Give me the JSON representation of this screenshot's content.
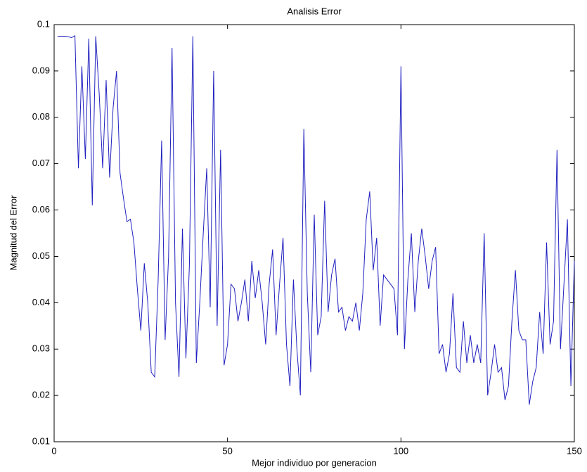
{
  "chart_data": {
    "type": "line",
    "title": "Analisis Error",
    "x_label": "Mejor individuo por generacion",
    "y_label": "Magnitud del Error",
    "x": [
      1,
      2,
      3,
      4,
      5,
      6,
      7,
      8,
      9,
      10,
      11,
      12,
      13,
      14,
      15,
      16,
      17,
      18,
      19,
      20,
      21,
      22,
      23,
      24,
      25,
      26,
      27,
      28,
      29,
      30,
      31,
      32,
      33,
      34,
      35,
      36,
      37,
      38,
      39,
      40,
      41,
      42,
      43,
      44,
      45,
      46,
      47,
      48,
      49,
      50,
      51,
      52,
      53,
      54,
      55,
      56,
      57,
      58,
      59,
      60,
      61,
      62,
      63,
      64,
      65,
      66,
      67,
      68,
      69,
      70,
      71,
      72,
      73,
      74,
      75,
      76,
      77,
      78,
      79,
      80,
      81,
      82,
      83,
      84,
      85,
      86,
      87,
      88,
      89,
      90,
      91,
      92,
      93,
      94,
      95,
      96,
      97,
      98,
      99,
      100,
      101,
      102,
      103,
      104,
      105,
      106,
      107,
      108,
      109,
      110,
      111,
      112,
      113,
      114,
      115,
      116,
      117,
      118,
      119,
      120,
      121,
      122,
      123,
      124,
      125,
      126,
      127,
      128,
      129,
      130,
      131,
      132,
      133,
      134,
      135,
      136,
      137,
      138,
      139,
      140,
      141,
      142,
      143,
      144,
      145,
      146,
      147,
      148,
      149,
      150
    ],
    "series": [
      {
        "name": "Error",
        "color": "#2020c0",
        "values": [
          0.0975,
          0.0975,
          0.0975,
          0.0974,
          0.0972,
          0.0976,
          0.069,
          0.091,
          0.071,
          0.097,
          0.061,
          0.0975,
          0.085,
          0.069,
          0.088,
          0.067,
          0.082,
          0.09,
          0.068,
          0.0625,
          0.0575,
          0.058,
          0.053,
          0.043,
          0.034,
          0.0485,
          0.04,
          0.025,
          0.024,
          0.045,
          0.075,
          0.032,
          0.05,
          0.095,
          0.04,
          0.024,
          0.056,
          0.028,
          0.048,
          0.0975,
          0.027,
          0.04,
          0.055,
          0.069,
          0.039,
          0.09,
          0.035,
          0.073,
          0.0265,
          0.031,
          0.044,
          0.043,
          0.036,
          0.04,
          0.045,
          0.036,
          0.049,
          0.041,
          0.047,
          0.04,
          0.031,
          0.044,
          0.0515,
          0.033,
          0.044,
          0.054,
          0.031,
          0.022,
          0.045,
          0.03,
          0.02,
          0.0775,
          0.042,
          0.025,
          0.059,
          0.033,
          0.037,
          0.062,
          0.038,
          0.046,
          0.0495,
          0.038,
          0.039,
          0.034,
          0.037,
          0.036,
          0.04,
          0.034,
          0.042,
          0.058,
          0.064,
          0.047,
          0.054,
          0.035,
          0.046,
          0.045,
          0.044,
          0.043,
          0.033,
          0.091,
          0.03,
          0.045,
          0.055,
          0.038,
          0.049,
          0.056,
          0.05,
          0.043,
          0.049,
          0.052,
          0.029,
          0.031,
          0.025,
          0.029,
          0.042,
          0.026,
          0.025,
          0.036,
          0.027,
          0.033,
          0.027,
          0.031,
          0.027,
          0.055,
          0.02,
          0.025,
          0.031,
          0.025,
          0.026,
          0.019,
          0.022,
          0.036,
          0.047,
          0.034,
          0.032,
          0.032,
          0.018,
          0.023,
          0.026,
          0.038,
          0.029,
          0.053,
          0.031,
          0.036,
          0.073,
          0.03,
          0.044,
          0.058,
          0.022,
          0.049
        ]
      }
    ],
    "xlim": [
      0,
      150
    ],
    "xticks": [
      0,
      50,
      100,
      150
    ],
    "ylim": [
      0.01,
      0.1
    ],
    "yticks": [
      0.01,
      0.02,
      0.03,
      0.04,
      0.05,
      0.06,
      0.07,
      0.08,
      0.09,
      0.1
    ],
    "grid": false
  }
}
